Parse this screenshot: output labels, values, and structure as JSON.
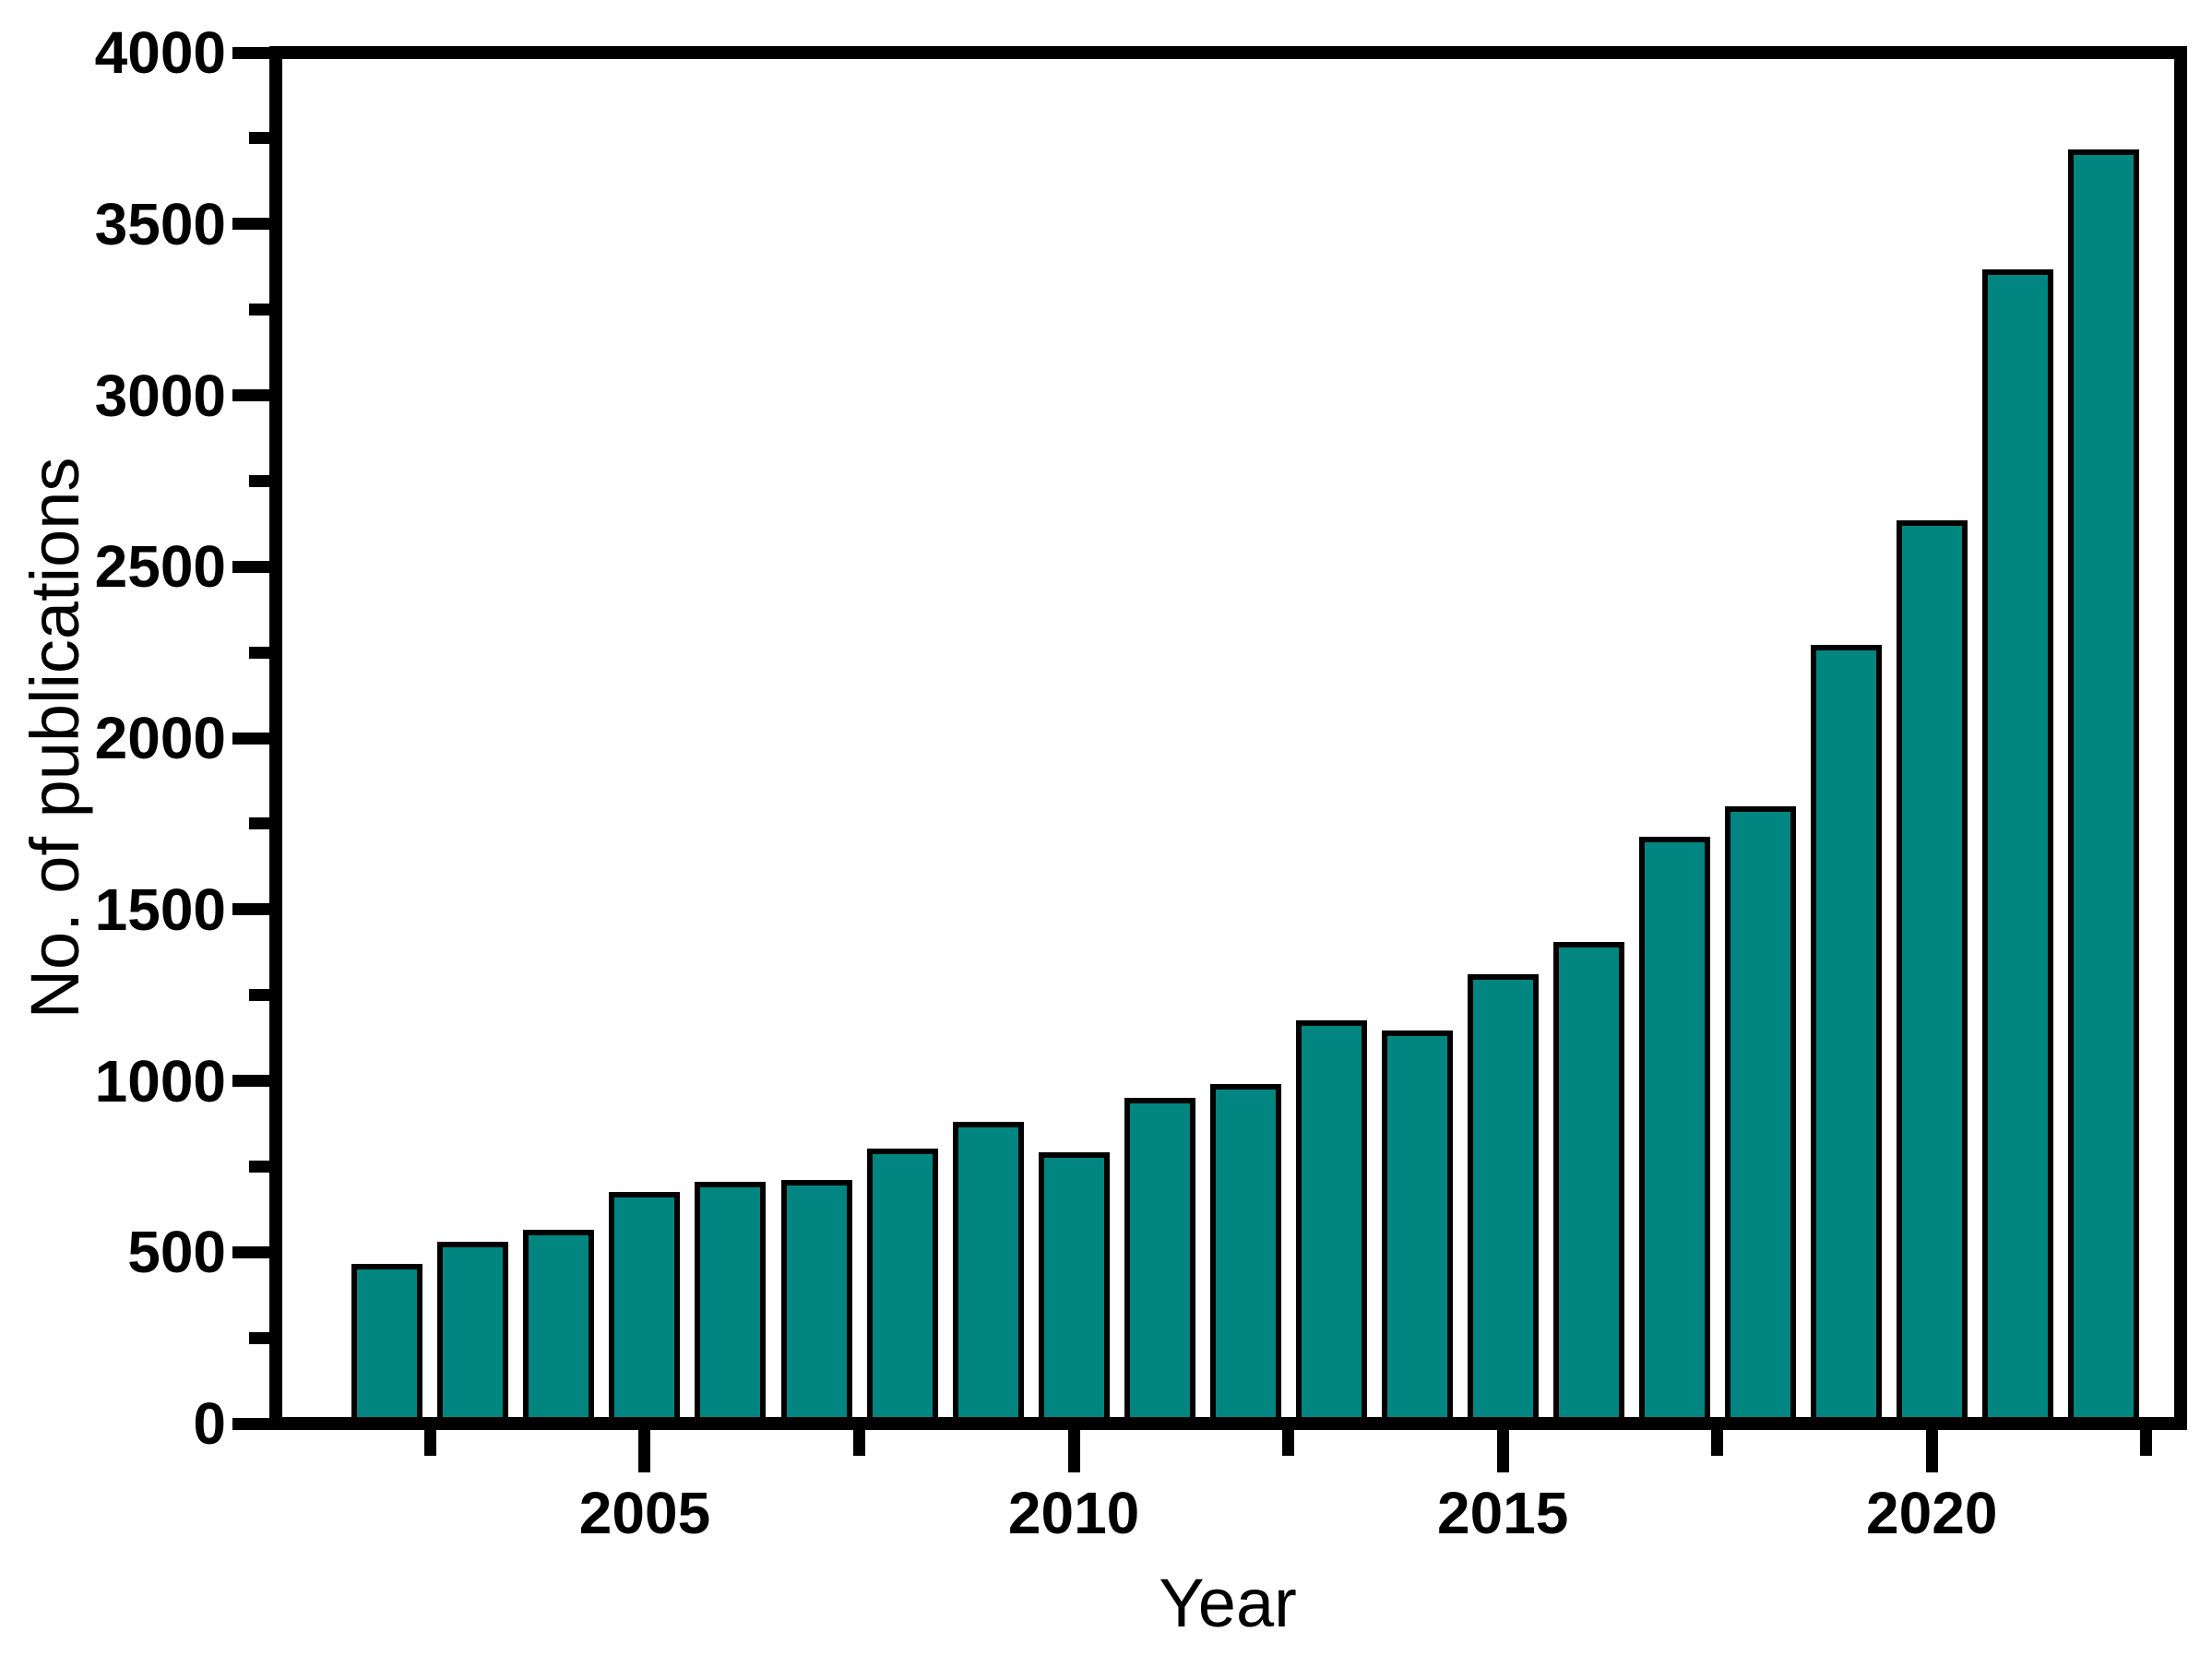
{
  "chart_data": {
    "type": "bar",
    "title": "",
    "xlabel": "Year",
    "ylabel": "No. of publications",
    "categories": [
      2002,
      2003,
      2004,
      2005,
      2006,
      2007,
      2008,
      2009,
      2010,
      2011,
      2012,
      2013,
      2014,
      2015,
      2016,
      2017,
      2018,
      2019,
      2020,
      2021,
      2022
    ],
    "values": [
      450,
      515,
      550,
      660,
      690,
      695,
      785,
      865,
      775,
      935,
      975,
      1160,
      1130,
      1295,
      1390,
      1695,
      1785,
      2255,
      2620,
      3350,
      3700
    ],
    "ylim": [
      0,
      4000
    ],
    "xlim_years": [
      2000.7,
      2022.9
    ],
    "y_ticks": {
      "major_values": [
        0,
        500,
        1000,
        1500,
        2000,
        2500,
        3000,
        3500,
        4000
      ],
      "major_labels": [
        "0",
        "500",
        "1000",
        "1500",
        "2000",
        "2500",
        "3000",
        "3500",
        "4000"
      ],
      "minor_values": [
        250,
        750,
        1250,
        1750,
        2250,
        2750,
        3250,
        3750
      ]
    },
    "x_ticks": {
      "major_values": [
        2005,
        2010,
        2015,
        2020
      ],
      "major_labels": [
        "2005",
        "2010",
        "2015",
        "2020"
      ],
      "minor_values": [
        2002.5,
        2007.5,
        2012.5,
        2017.5,
        2022.5
      ]
    },
    "style": {
      "bar_fill": "#008581",
      "bar_stroke": "#000000",
      "axis_color": "#000000",
      "background": "#ffffff"
    },
    "grid": false,
    "legend": "none"
  }
}
